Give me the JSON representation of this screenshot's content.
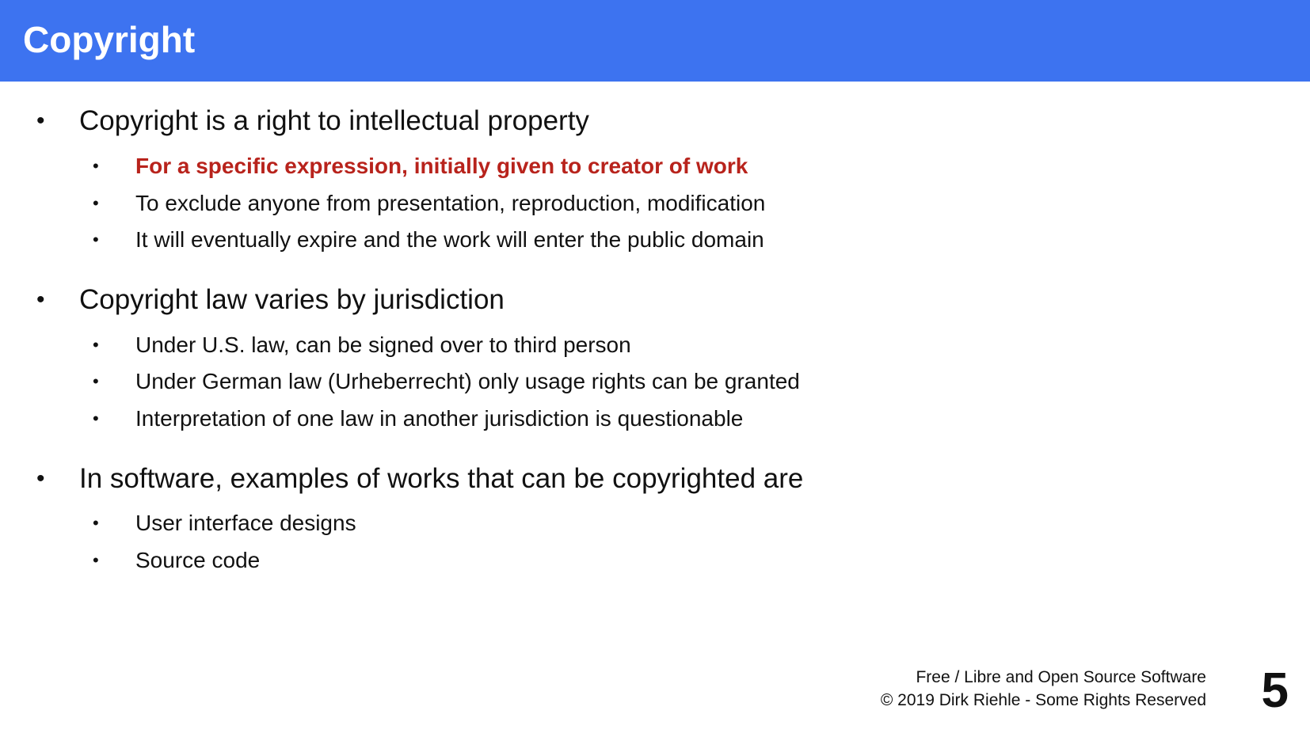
{
  "slide": {
    "title": "Copyright",
    "bullet_glyph": "•",
    "sections": [
      {
        "text": "Copyright is a right to intellectual property",
        "items": [
          {
            "text": "For a specific expression, initially given to creator of work",
            "highlight": true
          },
          {
            "text": "To exclude anyone from presentation, reproduction, modification",
            "highlight": false
          },
          {
            "text": "It will eventually expire and the work will enter the public domain",
            "highlight": false
          }
        ]
      },
      {
        "text": "Copyright law varies by jurisdiction",
        "items": [
          {
            "text": "Under U.S. law, can be signed over to third person"
          },
          {
            "text": "Under German law (Urheberrecht) only usage rights can be granted"
          },
          {
            "text": "Interpretation of one law in another jurisdiction is questionable"
          }
        ]
      },
      {
        "text": "In software, examples of works that can be copyrighted are",
        "items": [
          {
            "text": "User interface designs"
          },
          {
            "text": "Source code"
          }
        ]
      }
    ],
    "footer": {
      "course": "Free / Libre and Open Source Software",
      "copyright": "© 2019 Dirk Riehle - Some Rights Reserved"
    },
    "page_number": "5"
  },
  "colors": {
    "header_background": "#3d73f0",
    "title_text": "#ffffff",
    "body_text": "#111111",
    "highlight_text": "#b8231c"
  }
}
